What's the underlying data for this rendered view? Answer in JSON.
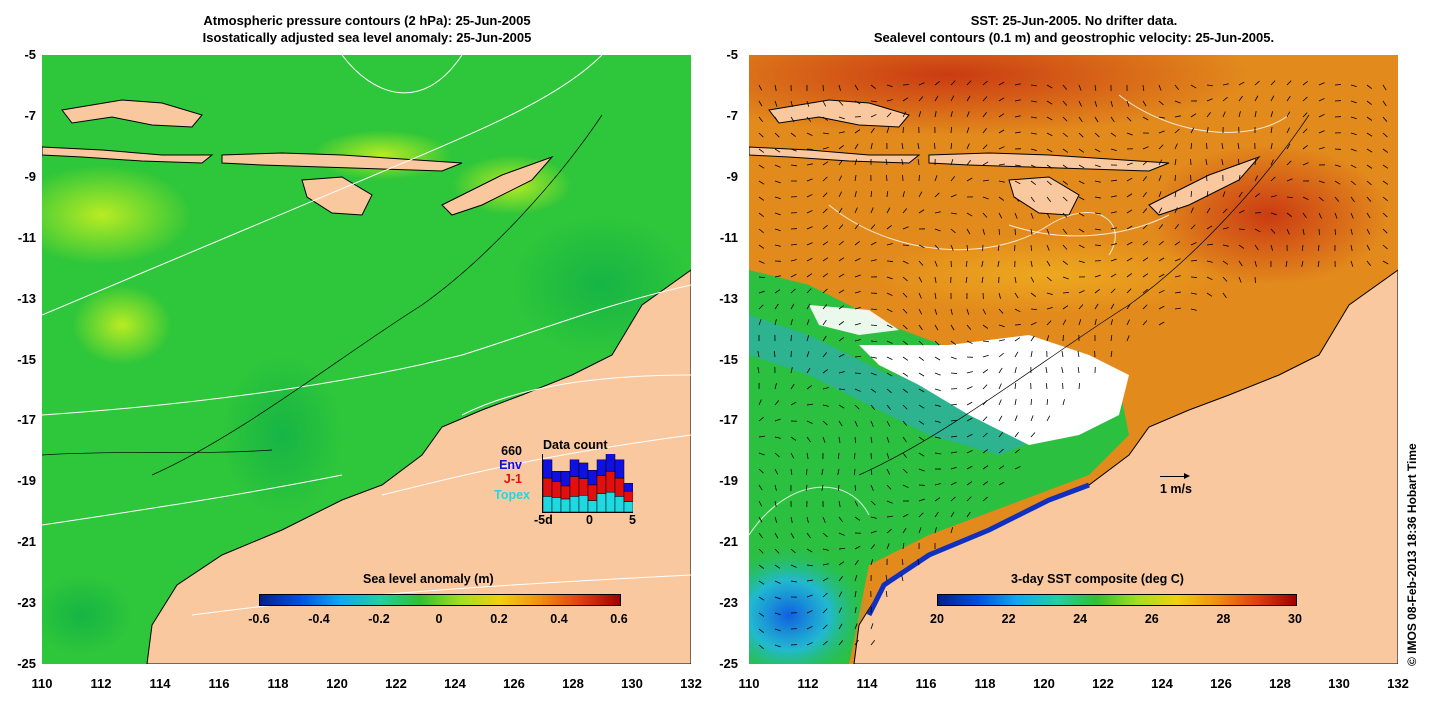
{
  "left_panel": {
    "title_line1": "Atmospheric pressure contours (2 hPa): 25-Jun-2005",
    "title_line2": "Isostatically adjusted sea level anomaly: 25-Jun-2005",
    "colorbar": {
      "title": "Sea level anomaly (m)",
      "ticks": [
        "-0.6",
        "-0.4",
        "-0.2",
        "0",
        "0.2",
        "0.4",
        "0.6"
      ]
    },
    "data_count": {
      "title": "Data count",
      "max_label": "660",
      "labels": [
        "Env",
        "J-1",
        "Topex"
      ],
      "label_colors": [
        "#1010e0",
        "#e01010",
        "#20d8e0"
      ],
      "x_ticks": [
        "-5d",
        "0",
        "5"
      ],
      "bars": [
        {
          "topex": 0.3,
          "j1": 0.35,
          "env": 0.35
        },
        {
          "topex": 0.28,
          "j1": 0.3,
          "env": 0.2
        },
        {
          "topex": 0.25,
          "j1": 0.25,
          "env": 0.28
        },
        {
          "topex": 0.3,
          "j1": 0.38,
          "env": 0.32
        },
        {
          "topex": 0.32,
          "j1": 0.32,
          "env": 0.3
        },
        {
          "topex": 0.22,
          "j1": 0.3,
          "env": 0.28
        },
        {
          "topex": 0.35,
          "j1": 0.35,
          "env": 0.3
        },
        {
          "topex": 0.38,
          "j1": 0.4,
          "env": 0.35
        },
        {
          "topex": 0.3,
          "j1": 0.35,
          "env": 0.35
        },
        {
          "topex": 0.2,
          "j1": 0.2,
          "env": 0.15
        }
      ]
    }
  },
  "right_panel": {
    "title_line1": "SST: 25-Jun-2005. No drifter data.",
    "title_line2": "Sealevel contours (0.1 m) and geostrophic velocity: 25-Jun-2005.",
    "colorbar": {
      "title": "3-day SST composite (deg C)",
      "ticks": [
        "20",
        "22",
        "24",
        "26",
        "28",
        "30"
      ]
    },
    "velocity_scale_label": "1 m/s"
  },
  "axes": {
    "y_ticks": [
      "-5",
      "-7",
      "-9",
      "-11",
      "-13",
      "-15",
      "-17",
      "-19",
      "-21",
      "-23",
      "-25"
    ],
    "x_ticks": [
      "110",
      "112",
      "114",
      "116",
      "118",
      "120",
      "122",
      "124",
      "126",
      "128",
      "130",
      "132"
    ]
  },
  "credit": "© IMOS 08-Feb-2013 18:36 Hobart Time",
  "colors": {
    "land": "#f9c89f",
    "sla_ocean": "#22c43a",
    "sst_ocean": "#e69a1e",
    "contour": "#ffffff",
    "coast": "#000000"
  }
}
